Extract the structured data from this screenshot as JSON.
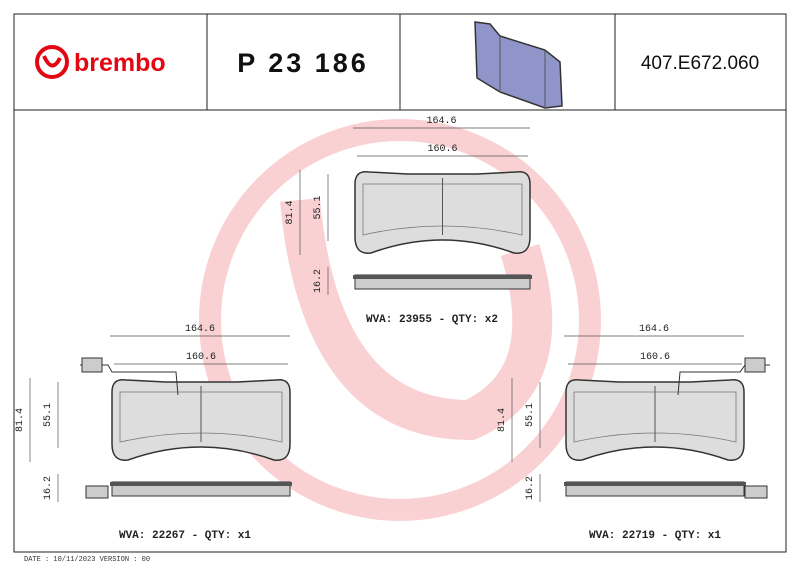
{
  "header": {
    "brand": "brembo",
    "part_number": "P 23 186",
    "reference": "407.E672.060"
  },
  "views": [
    {
      "width_outer": "164.6",
      "width_inner": "160.6",
      "height_outer": "81.4",
      "height_inner": "55.1",
      "thickness": "16.2",
      "caption": "WVA: 23955 - QTY: x2"
    },
    {
      "width_outer": "164.6",
      "width_inner": "160.6",
      "height_outer": "81.4",
      "height_inner": "55.1",
      "thickness": "16.2",
      "caption": "WVA: 22267 - QTY: x1"
    },
    {
      "width_outer": "164.6",
      "width_inner": "160.6",
      "height_outer": "81.4",
      "height_inner": "55.1",
      "thickness": "16.2",
      "caption": "WVA: 22719 - QTY: x1"
    }
  ],
  "footer": "DATE : 10/11/2023 VERSION : 00"
}
